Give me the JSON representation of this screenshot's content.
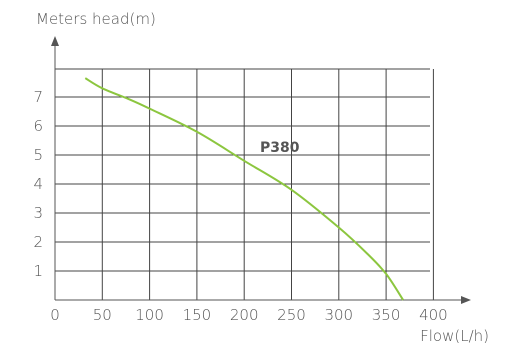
{
  "chart_data": {
    "type": "line",
    "ylabel": "Meters head(m)",
    "xlabel": "Flow(L/h)",
    "x_ticks": [
      "0",
      "50",
      "100",
      "150",
      "200",
      "250",
      "300",
      "350",
      "400"
    ],
    "y_ticks": [
      "1",
      "2",
      "3",
      "4",
      "5",
      "6",
      "7"
    ],
    "xlim": [
      0,
      400
    ],
    "ylim": [
      0,
      8
    ],
    "grid": true,
    "series": [
      {
        "name": "P380",
        "color": "#8cc63f",
        "x": [
          32,
          50,
          80,
          100,
          150,
          200,
          250,
          300,
          330,
          350,
          368
        ],
        "y": [
          7.65,
          7.3,
          6.9,
          6.6,
          5.8,
          4.8,
          3.8,
          2.5,
          1.6,
          0.9,
          0
        ]
      }
    ]
  }
}
